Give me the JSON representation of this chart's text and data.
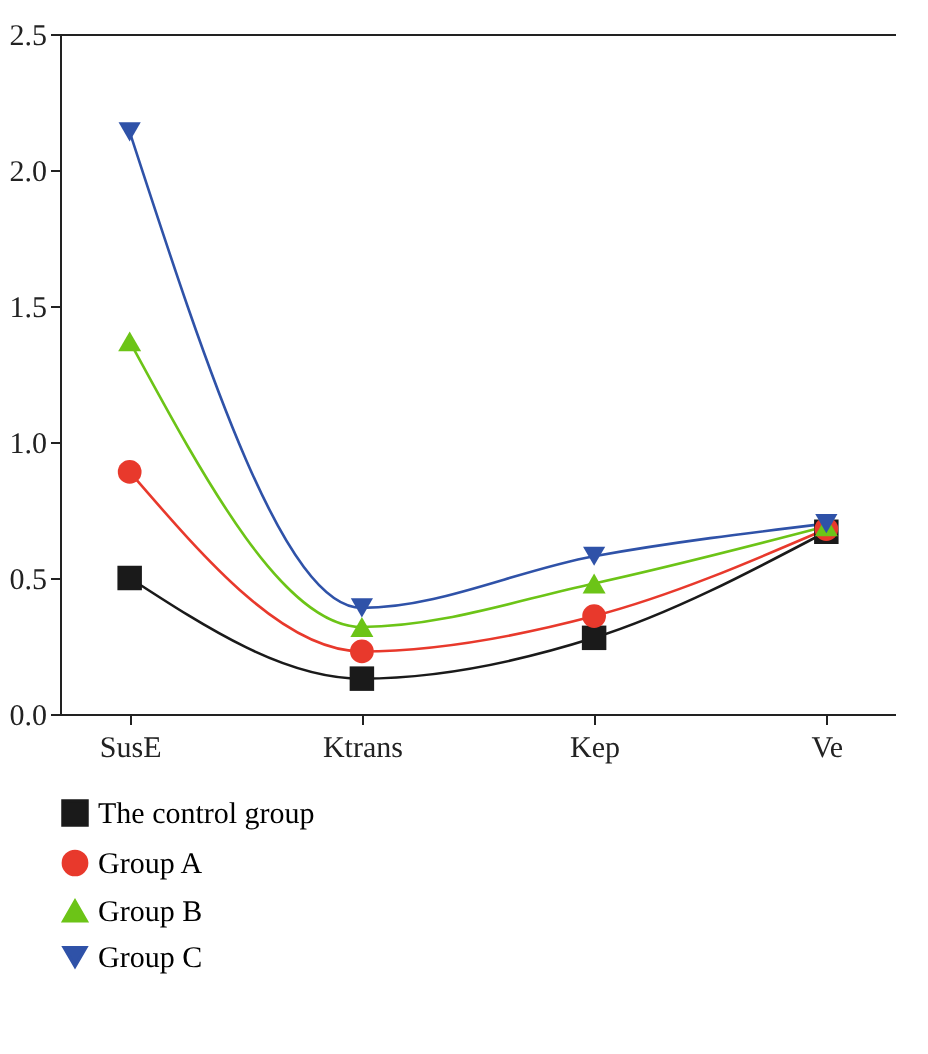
{
  "chart_data": {
    "type": "line",
    "categories": [
      "SusE",
      "Ktrans",
      "Kep",
      "Ve"
    ],
    "series": [
      {
        "name": "The control group",
        "color": "#1a1a1a",
        "marker": "square",
        "values": [
          0.5,
          0.13,
          0.28,
          0.67
        ]
      },
      {
        "name": "Group A",
        "color": "#e8392c",
        "marker": "circle",
        "values": [
          0.89,
          0.23,
          0.36,
          0.68
        ]
      },
      {
        "name": "Group B",
        "color": "#6cc417",
        "marker": "triangle",
        "values": [
          1.37,
          0.32,
          0.48,
          0.69
        ]
      },
      {
        "name": "Group C",
        "color": "#2f52a8",
        "marker": "triangle-down",
        "values": [
          2.14,
          0.39,
          0.58,
          0.7
        ]
      }
    ],
    "ylim": [
      0,
      2.5
    ],
    "yticks": [
      {
        "value": 0,
        "label": "0.0"
      },
      {
        "value": 0.5,
        "label": "0.5"
      },
      {
        "value": 1,
        "label": "1.0"
      },
      {
        "value": 1.5,
        "label": "1.5"
      },
      {
        "value": 2,
        "label": "2.0"
      },
      {
        "value": 2.5,
        "label": "2.5"
      }
    ],
    "grid": false,
    "legend": "bottom",
    "line_style": "solid"
  }
}
